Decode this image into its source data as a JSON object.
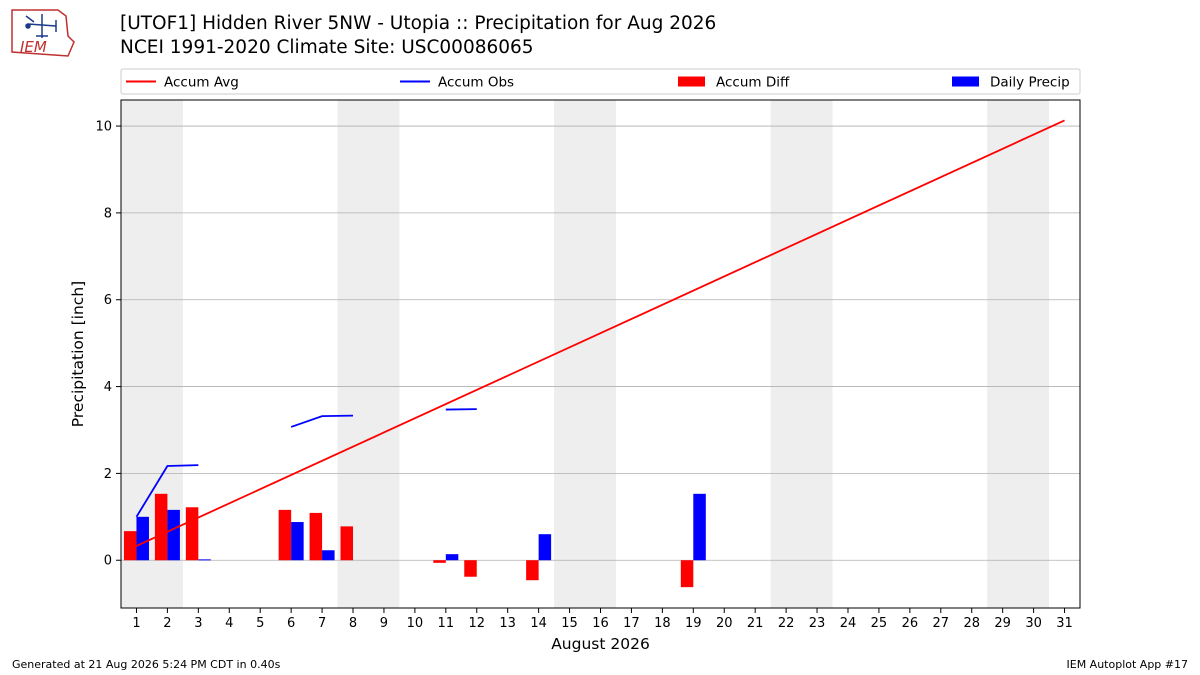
{
  "header": {
    "title_line1": "[UTOF1] Hidden River 5NW - Utopia :: Precipitation for Aug 2026",
    "title_line2": "NCEI 1991-2020 Climate Site: USC00086065",
    "logo_text": "IEM"
  },
  "footer": {
    "generated": "Generated at 21 Aug 2026 5:24 PM CDT in 0.40s",
    "app": "IEM Autoplot App #17"
  },
  "colors": {
    "avg": "#ff0000",
    "obs": "#0000ff",
    "diff": "#ff0000",
    "precip": "#0000ff",
    "weekend_band": "#eeeeee",
    "grid": "#b0b0b0"
  },
  "chart_data": {
    "type": "bar",
    "xlabel": "August 2026",
    "ylabel": "Precipitation [inch]",
    "xlim": [
      0.5,
      31.5
    ],
    "ylim": [
      -1.1,
      10.6
    ],
    "yticks": [
      0,
      2,
      4,
      6,
      8,
      10
    ],
    "x": [
      1,
      2,
      3,
      4,
      5,
      6,
      7,
      8,
      9,
      10,
      11,
      12,
      13,
      14,
      15,
      16,
      17,
      18,
      19,
      20,
      21,
      22,
      23,
      24,
      25,
      26,
      27,
      28,
      29,
      30,
      31
    ],
    "legend": {
      "placement": "top",
      "entries": [
        "Accum Avg",
        "Accum Obs",
        "Accum Diff",
        "Daily Precip"
      ]
    },
    "weekend_bands": [
      [
        0.5,
        2.5
      ],
      [
        7.5,
        9.5
      ],
      [
        14.5,
        16.5
      ],
      [
        21.5,
        23.5
      ],
      [
        28.5,
        30.5
      ]
    ],
    "accum_avg": {
      "name": "Accum Avg",
      "start": [
        1,
        0.33
      ],
      "end": [
        31,
        10.13
      ]
    },
    "accum_obs": {
      "name": "Accum Obs",
      "segments": [
        [
          [
            1,
            1.0
          ],
          [
            2,
            2.17
          ],
          [
            3,
            2.19
          ]
        ],
        [
          [
            6,
            3.07
          ],
          [
            7,
            3.32
          ],
          [
            8,
            3.33
          ]
        ],
        [
          [
            11,
            3.47
          ],
          [
            12,
            3.48
          ]
        ]
      ]
    },
    "accum_diff": {
      "name": "Accum Diff",
      "values": [
        [
          1,
          0.67
        ],
        [
          2,
          1.53
        ],
        [
          3,
          1.22
        ],
        [
          6,
          1.16
        ],
        [
          7,
          1.09
        ],
        [
          8,
          0.78
        ],
        [
          11,
          -0.06
        ],
        [
          12,
          -0.38
        ],
        [
          14,
          -0.46
        ],
        [
          19,
          -0.62
        ]
      ]
    },
    "daily_precip": {
      "name": "Daily Precip",
      "values": [
        [
          1,
          1.0
        ],
        [
          2,
          1.16
        ],
        [
          3,
          0.02
        ],
        [
          6,
          0.88
        ],
        [
          7,
          0.23
        ],
        [
          11,
          0.14
        ],
        [
          14,
          0.6
        ],
        [
          19,
          1.53
        ]
      ]
    }
  }
}
